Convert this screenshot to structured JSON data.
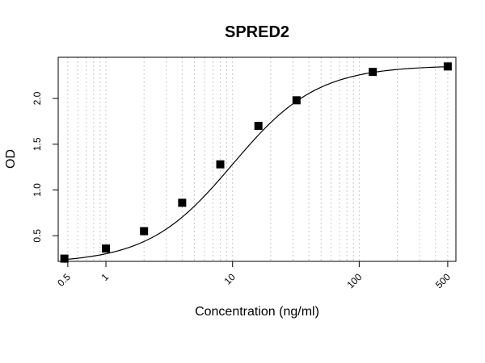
{
  "chart_data": {
    "type": "scatter",
    "title": "SPRED2",
    "xlabel": "Concentration (ng/ml)",
    "ylabel": "OD",
    "x_scale": "log",
    "xlim": [
      0.42,
      580
    ],
    "ylim": [
      0.22,
      2.45
    ],
    "x_ticks": [
      0.5,
      1,
      10,
      100,
      500
    ],
    "x_tick_labels": [
      "0.5",
      "1",
      "10",
      "100",
      "500"
    ],
    "y_ticks": [
      0.5,
      1.0,
      1.5,
      2.0
    ],
    "y_tick_labels": [
      "0.5",
      "1.0",
      "1.5",
      "2.0"
    ],
    "grid": "vertical dotted at log minor positions",
    "series": [
      {
        "x": [
          0.47,
          1,
          2,
          4,
          8,
          16,
          32,
          128,
          500
        ],
        "y": [
          0.25,
          0.36,
          0.55,
          0.86,
          1.28,
          1.7,
          1.98,
          2.29,
          2.35
        ]
      }
    ],
    "fit": {
      "type": "4PL",
      "bottom": 0.2,
      "top": 2.36,
      "ec50": 10,
      "hill": 1.3
    },
    "colors": {
      "points": "#000000",
      "curve": "#000000",
      "grid": "#c8c8c8"
    }
  }
}
